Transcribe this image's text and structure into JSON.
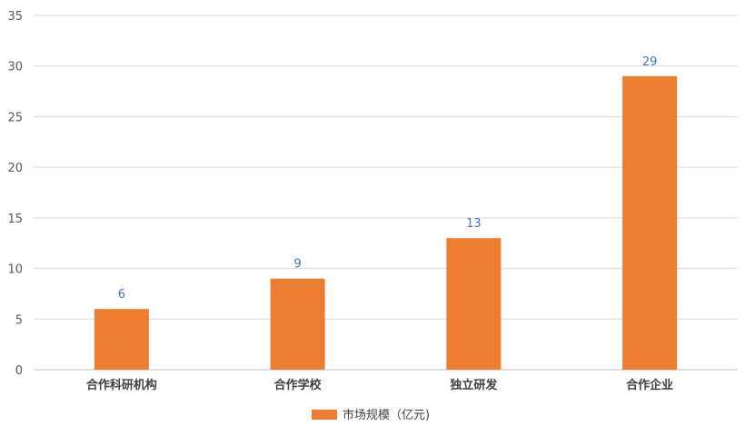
{
  "chart_data": {
    "type": "bar",
    "categories": [
      "合作科研机构",
      "合作学校",
      "独立研发",
      "合作企业"
    ],
    "series": [
      {
        "name": "市场规模（亿元)",
        "values": [
          6,
          9,
          13,
          29
        ]
      }
    ],
    "data_labels": [
      "6",
      "9",
      "13",
      "29"
    ],
    "y_ticks": [
      "0",
      "5",
      "10",
      "15",
      "20",
      "25",
      "30",
      "35"
    ],
    "ylim": [
      0,
      35
    ],
    "grid": true,
    "legend_position": "bottom",
    "colors": {
      "bar": "#ed7d31",
      "data_label": "#4472c4",
      "grid": "#d9d9d9"
    }
  }
}
